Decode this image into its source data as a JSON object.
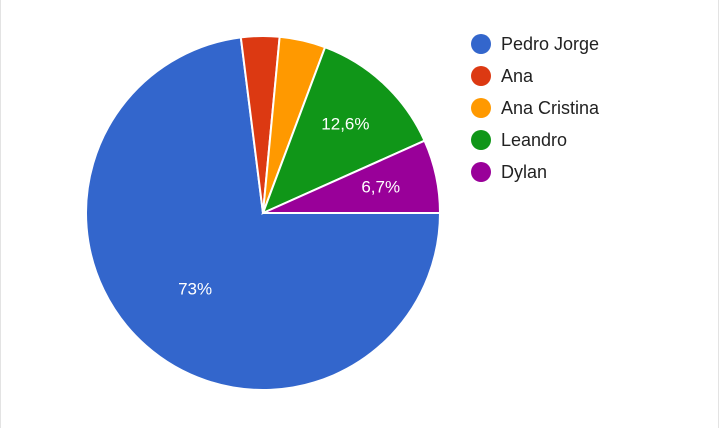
{
  "chart_data": {
    "type": "pie",
    "title": "",
    "legend_position": "right",
    "slices": [
      {
        "name": "Pedro Jorge",
        "value": 73,
        "label": "73%",
        "color": "#3366cc"
      },
      {
        "name": "Ana",
        "value": 3.5,
        "label": "",
        "color": "#dc3912"
      },
      {
        "name": "Ana Cristina",
        "value": 4.2,
        "label": "",
        "color": "#ff9900"
      },
      {
        "name": "Leandro",
        "value": 12.6,
        "label": "12,6%",
        "color": "#109618"
      },
      {
        "name": "Dylan",
        "value": 6.7,
        "label": "6,7%",
        "color": "#990099"
      }
    ]
  }
}
